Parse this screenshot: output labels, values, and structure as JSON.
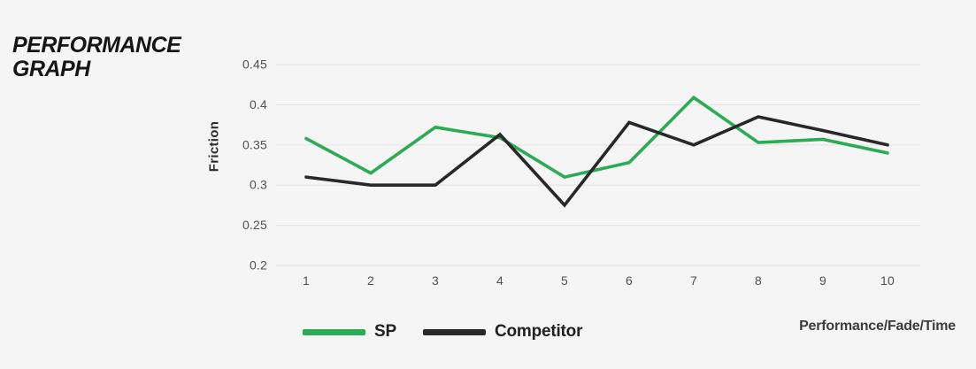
{
  "title": {
    "line1": "PERFORMANCE",
    "line2": "GRAPH"
  },
  "colors": {
    "background": "#f5f5f5",
    "gridline": "#e7e7e7",
    "axis_text": "#4f4f4f",
    "title_text": "#161616",
    "legend_text": "#202020",
    "sp_green": "#2bab54",
    "competitor_black": "#282828",
    "footer_text": "#3c3c3c"
  },
  "chart_data": {
    "type": "line",
    "title": "PERFORMANCE GRAPH",
    "x": [
      1,
      2,
      3,
      4,
      5,
      6,
      7,
      8,
      9,
      10
    ],
    "series": [
      {
        "name": "SP",
        "color": "#2bab54",
        "values": [
          0.358,
          0.315,
          0.372,
          0.359,
          0.31,
          0.328,
          0.409,
          0.353,
          0.357,
          0.34
        ]
      },
      {
        "name": "Competitor",
        "color": "#282828",
        "values": [
          0.31,
          0.3,
          0.3,
          0.363,
          0.275,
          0.378,
          0.35,
          0.385,
          0.368,
          0.35
        ]
      }
    ],
    "ylabel": "Friction",
    "xlabel": "Performance/Fade/Time",
    "yticks": [
      0.45,
      0.4,
      0.35,
      0.3,
      0.25,
      0.2
    ],
    "ylim": [
      0.2,
      0.45
    ],
    "grid": "horizontal",
    "legend_position": "bottom"
  }
}
